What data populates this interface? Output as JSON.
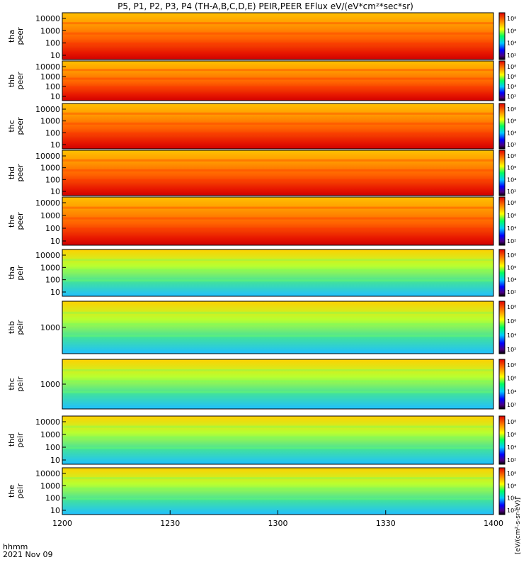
{
  "title": "P5, P1, P2, P3, P4 (TH-A,B,C,D,E) PEIR,PEER EFlux eV/(eV*cm²*sec*sr)",
  "footer": {
    "line1": "hhmm",
    "line2": "2021 Nov 09"
  },
  "colorbar_units": "[eV/(cm²-s-sr-eV)]",
  "colorbar_ticks": [
    "10⁸",
    "10⁶",
    "10⁴",
    "10²"
  ],
  "colors": {
    "high": "#e00000",
    "mid": "#ffff00",
    "low": "#0000a0",
    "fill": "#e02000"
  },
  "chart_data": {
    "type": "heatmap",
    "x_ticks": [
      "1200",
      "1230",
      "1300",
      "1330",
      "1400"
    ],
    "xlim": [
      "12:00",
      "14:00"
    ],
    "panels": [
      {
        "id": "tha_peer",
        "label": [
          "tha",
          "peer"
        ],
        "ylog": true,
        "yticks": [
          "10000",
          "1000",
          "100",
          "10"
        ]
      },
      {
        "id": "thb_peer",
        "label": [
          "thb",
          "peer"
        ],
        "ylog": true,
        "yticks": [
          "10000",
          "1000",
          "100",
          "10"
        ]
      },
      {
        "id": "thc_peer",
        "label": [
          "thc",
          "peer"
        ],
        "ylog": true,
        "yticks": [
          "10000",
          "1000",
          "100",
          "10"
        ]
      },
      {
        "id": "thd_peer",
        "label": [
          "thd",
          "peer"
        ],
        "ylog": true,
        "yticks": [
          "10000",
          "1000",
          "100",
          "10"
        ]
      },
      {
        "id": "the_peer",
        "label": [
          "the",
          "peer"
        ],
        "ylog": true,
        "yticks": [
          "10000",
          "1000",
          "100",
          "10"
        ]
      },
      {
        "id": "tha_peir",
        "label": [
          "tha",
          "peir"
        ],
        "ylog": true,
        "yticks": [
          "10000",
          "1000",
          "100",
          "10"
        ]
      },
      {
        "id": "thb_peir",
        "label": [
          "thb",
          "peir"
        ],
        "ylog": true,
        "yticks": [
          "1000"
        ]
      },
      {
        "id": "thc_peir",
        "label": [
          "thc",
          "peir"
        ],
        "ylog": true,
        "yticks": [
          "1000"
        ]
      },
      {
        "id": "thd_peir",
        "label": [
          "thd",
          "peir"
        ],
        "ylog": true,
        "yticks": [
          "10000",
          "1000",
          "100",
          "10"
        ]
      },
      {
        "id": "the_peir",
        "label": [
          "the",
          "peir"
        ],
        "ylog": true,
        "yticks": [
          "10000",
          "1000",
          "100",
          "10"
        ]
      }
    ]
  }
}
